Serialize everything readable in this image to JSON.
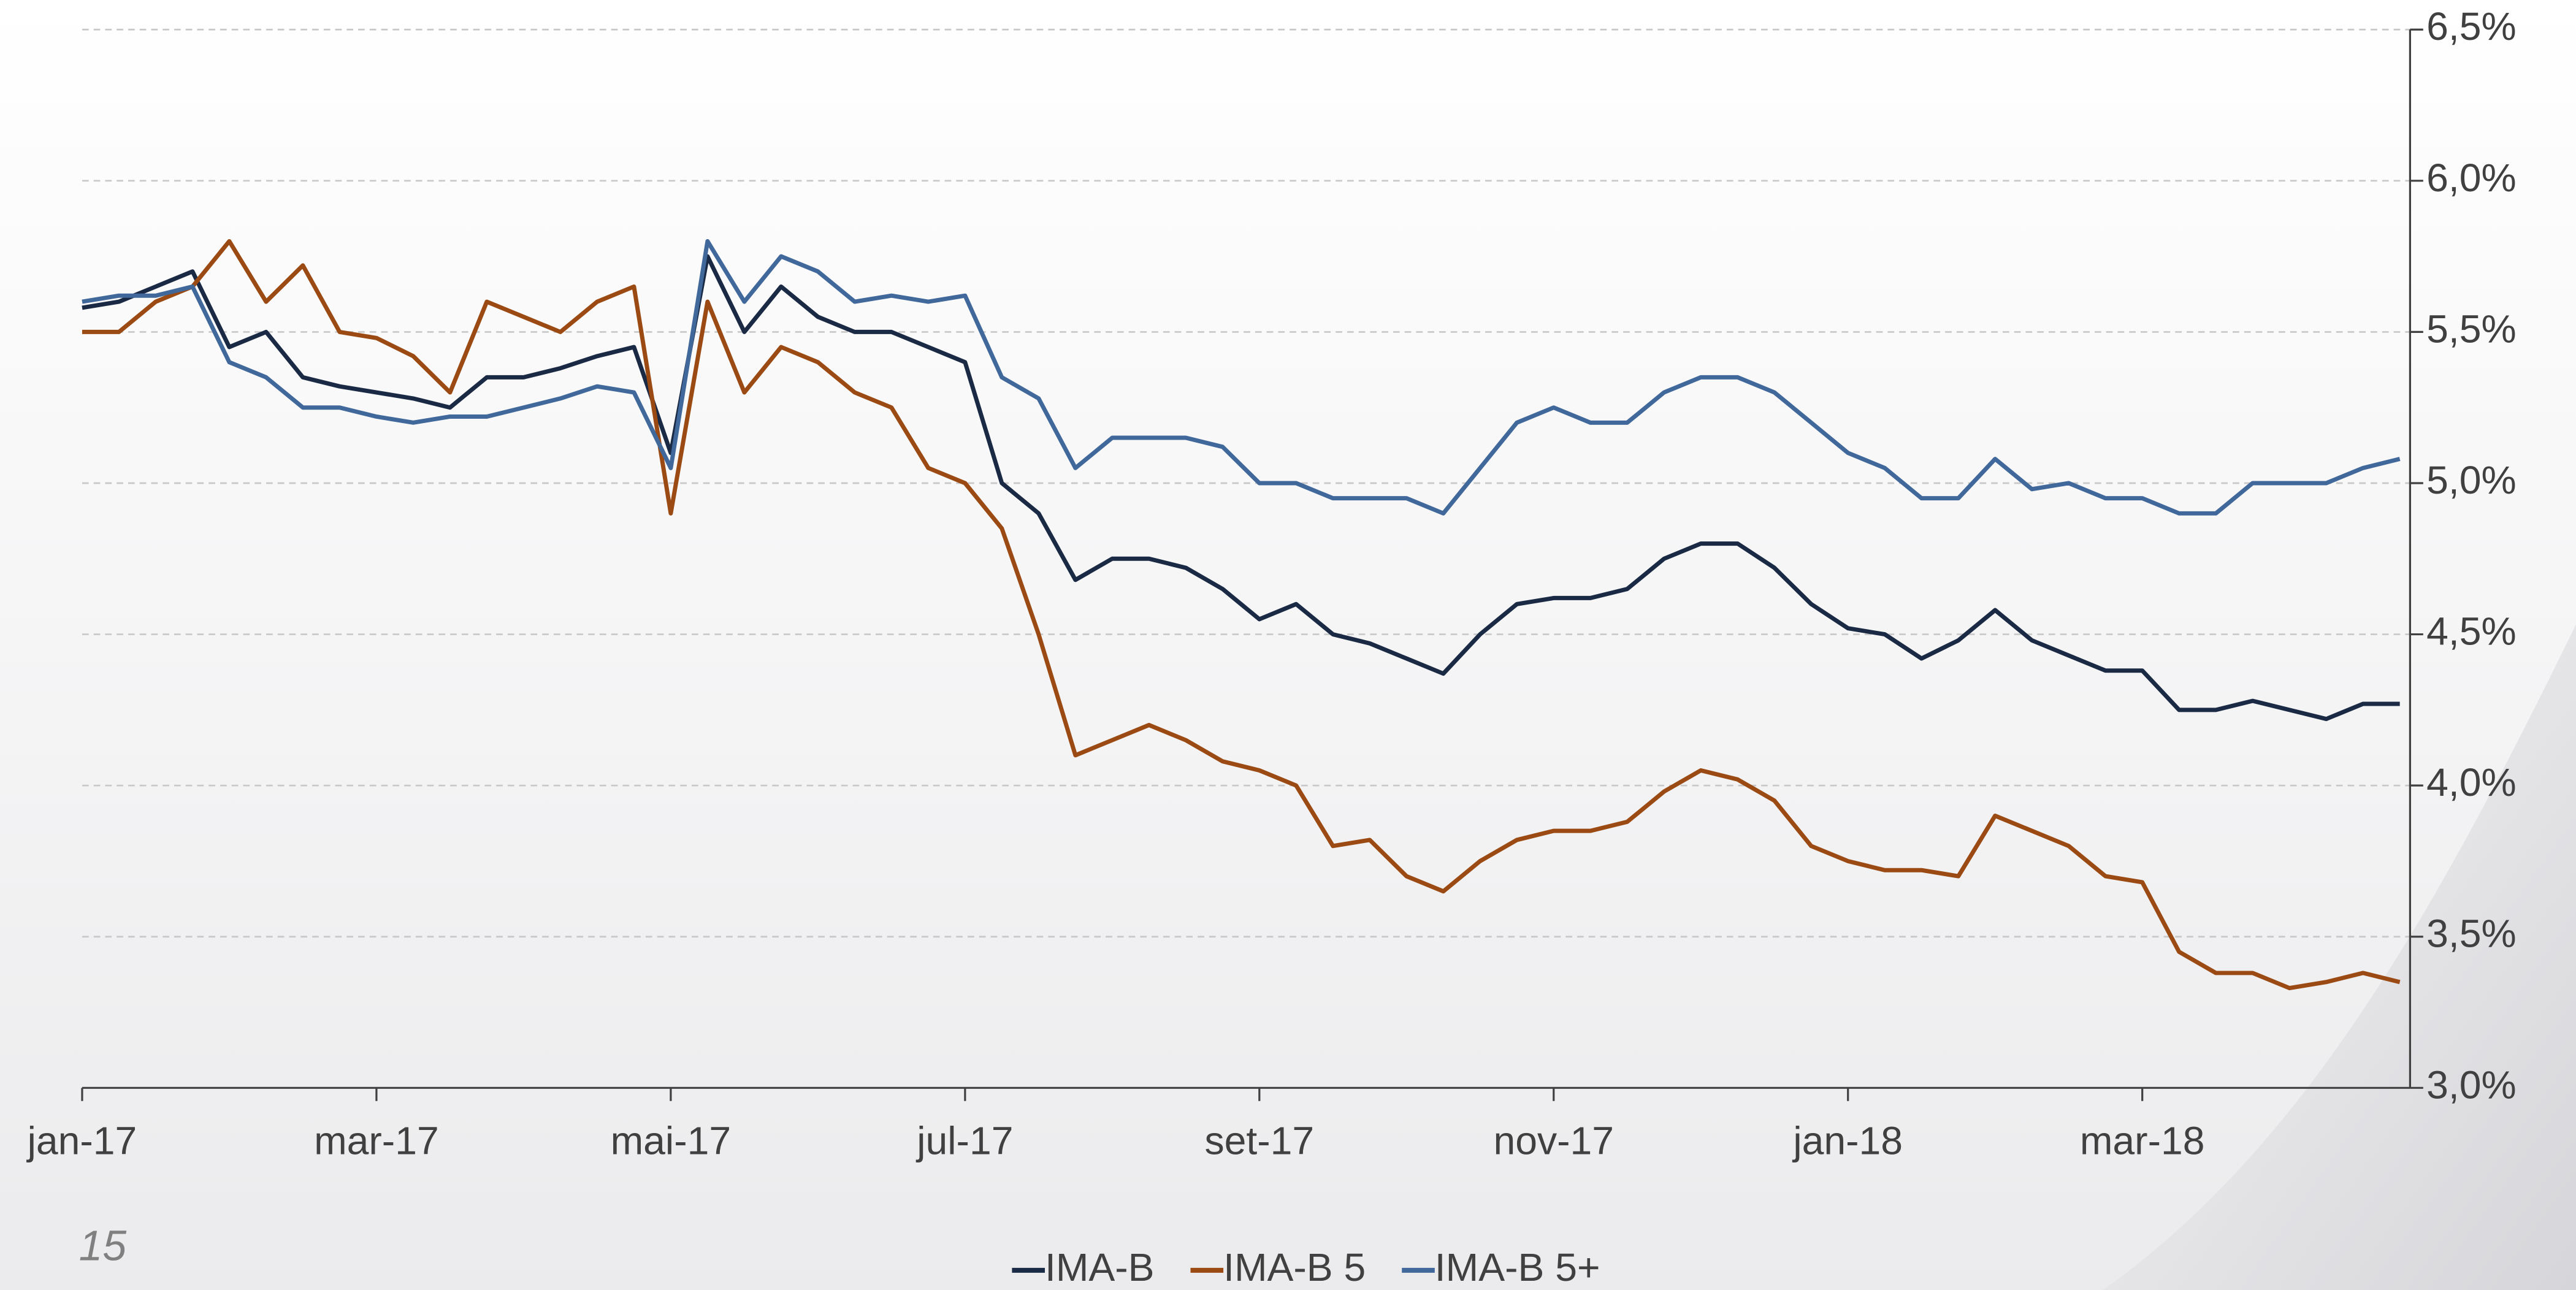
{
  "page_number": "15",
  "chart_data": {
    "type": "line",
    "categories": [
      "jan-17",
      null,
      null,
      null,
      null,
      null,
      null,
      null,
      "mar-17",
      null,
      null,
      null,
      null,
      null,
      null,
      null,
      "mai-17",
      null,
      null,
      null,
      null,
      null,
      null,
      null,
      "jul-17",
      null,
      null,
      null,
      null,
      null,
      null,
      null,
      "set-17",
      null,
      null,
      null,
      null,
      null,
      null,
      null,
      "nov-17",
      null,
      null,
      null,
      null,
      null,
      null,
      null,
      "jan-18",
      null,
      null,
      null,
      null,
      null,
      null,
      null,
      "mar-18",
      null,
      null,
      null,
      null,
      null,
      null,
      null
    ],
    "series": [
      {
        "name": "IMA-B",
        "color": "#1a2a44",
        "values": [
          5.58,
          5.6,
          5.65,
          5.7,
          5.45,
          5.5,
          5.35,
          5.32,
          5.3,
          5.28,
          5.25,
          5.35,
          5.35,
          5.38,
          5.42,
          5.45,
          5.1,
          5.75,
          5.5,
          5.65,
          5.55,
          5.5,
          5.5,
          5.45,
          5.4,
          5.0,
          4.9,
          4.68,
          4.75,
          4.75,
          4.72,
          4.65,
          4.55,
          4.6,
          4.5,
          4.47,
          4.42,
          4.37,
          4.5,
          4.6,
          4.62,
          4.62,
          4.65,
          4.75,
          4.8,
          4.8,
          4.72,
          4.6,
          4.52,
          4.5,
          4.42,
          4.48,
          4.58,
          4.48,
          4.43,
          4.38,
          4.38,
          4.25,
          4.25,
          4.28,
          4.25,
          4.22,
          4.27,
          4.27
        ]
      },
      {
        "name": "IMA-B 5",
        "color": "#9a4a12",
        "values": [
          5.5,
          5.5,
          5.6,
          5.65,
          5.8,
          5.6,
          5.72,
          5.5,
          5.48,
          5.42,
          5.3,
          5.6,
          5.55,
          5.5,
          5.6,
          5.65,
          4.9,
          5.6,
          5.3,
          5.45,
          5.4,
          5.3,
          5.25,
          5.05,
          5.0,
          4.85,
          4.5,
          4.1,
          4.15,
          4.2,
          4.15,
          4.08,
          4.05,
          4.0,
          3.8,
          3.82,
          3.7,
          3.65,
          3.75,
          3.82,
          3.85,
          3.85,
          3.88,
          3.98,
          4.05,
          4.02,
          3.95,
          3.8,
          3.75,
          3.72,
          3.72,
          3.7,
          3.9,
          3.85,
          3.8,
          3.7,
          3.68,
          3.45,
          3.38,
          3.38,
          3.33,
          3.35,
          3.38,
          3.35
        ]
      },
      {
        "name": "IMA-B 5+",
        "color": "#41689a",
        "values": [
          5.6,
          5.62,
          5.62,
          5.65,
          5.4,
          5.35,
          5.25,
          5.25,
          5.22,
          5.2,
          5.22,
          5.22,
          5.25,
          5.28,
          5.32,
          5.3,
          5.05,
          5.8,
          5.6,
          5.75,
          5.7,
          5.6,
          5.62,
          5.6,
          5.62,
          5.35,
          5.28,
          5.05,
          5.15,
          5.15,
          5.15,
          5.12,
          5.0,
          5.0,
          4.95,
          4.95,
          4.95,
          4.9,
          5.05,
          5.2,
          5.25,
          5.2,
          5.2,
          5.3,
          5.35,
          5.35,
          5.3,
          5.2,
          5.1,
          5.05,
          4.95,
          4.95,
          5.08,
          4.98,
          5.0,
          4.95,
          4.95,
          4.9,
          4.9,
          5.0,
          5.0,
          5.0,
          5.05,
          5.08
        ]
      }
    ],
    "ylim": [
      3.0,
      6.5
    ],
    "yticks": [
      {
        "value": 3.0,
        "label": "3,0%"
      },
      {
        "value": 3.5,
        "label": "3,5%"
      },
      {
        "value": 4.0,
        "label": "4,0%"
      },
      {
        "value": 4.5,
        "label": "4,5%"
      },
      {
        "value": 5.0,
        "label": "5,0%"
      },
      {
        "value": 5.5,
        "label": "5,5%"
      },
      {
        "value": 6.0,
        "label": "6,0%"
      },
      {
        "value": 6.5,
        "label": "6,5%"
      }
    ],
    "y_axis_side": "right",
    "grid": true,
    "legend": "bottom"
  }
}
